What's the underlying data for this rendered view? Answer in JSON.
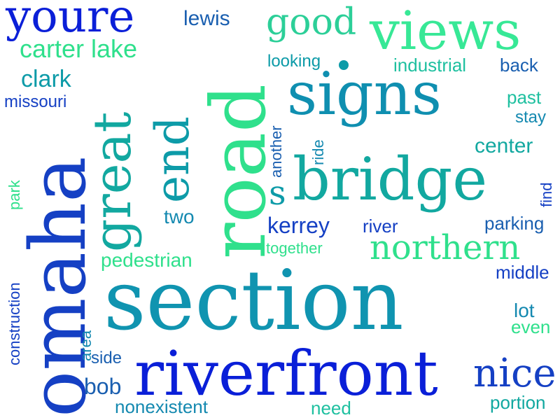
{
  "words": {
    "youre": "youre",
    "carter_lake": "carter lake",
    "clark": "clark",
    "missouri": "missouri",
    "omaha": "omaha",
    "park": "park",
    "construction": "construction",
    "area": "area",
    "side": "side",
    "bob": "bob",
    "nonexistent": "nonexistent",
    "lewis": "lewis",
    "good": "good",
    "views": "views",
    "great": "great",
    "end": "end",
    "road": "road",
    "signs": "signs",
    "looking": "looking",
    "industrial": "industrial",
    "back": "back",
    "past": "past",
    "stay": "stay",
    "center": "center",
    "another": "another",
    "ride": "ride",
    "s": "s",
    "bridge": "bridge",
    "find": "find",
    "two": "two",
    "kerrey": "kerrey",
    "river": "river",
    "parking": "parking",
    "together": "together",
    "northern": "northern",
    "pedestrian": "pedestrian",
    "middle": "middle",
    "section": "section",
    "lot": "lot",
    "even": "even",
    "riverfront": "riverfront",
    "nice": "nice",
    "need": "need",
    "portion": "portion"
  },
  "colors": {
    "background": "#ffffff",
    "blue": "#0a1fd8",
    "blue2": "#1540c4",
    "steel": "#1a5fb0",
    "teal_blue": "#1489b0",
    "teal": "#0d9ba8",
    "teal2": "#12a8a0",
    "sea": "#1fc0a0",
    "green": "#2fe08c",
    "mint": "#37e896"
  }
}
